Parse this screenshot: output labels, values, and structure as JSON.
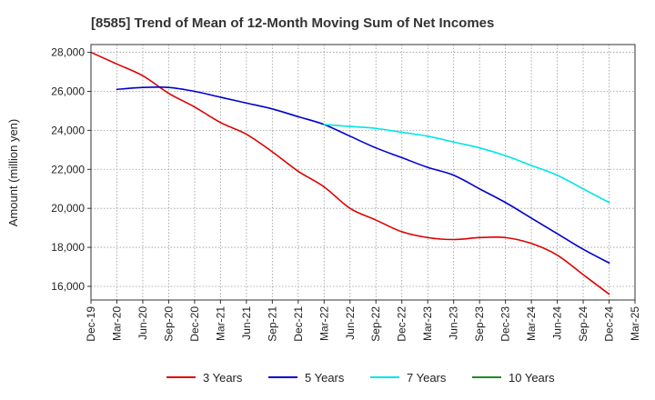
{
  "chart_data": {
    "type": "line",
    "title": "[8585]  Trend of Mean of 12-Month Moving Sum of Net Incomes",
    "xlabel": "",
    "ylabel": "Amount (million yen)",
    "ylim": [
      15300,
      28400
    ],
    "yticks": [
      16000,
      18000,
      20000,
      22000,
      24000,
      26000,
      28000
    ],
    "ytick_labels": [
      "16,000",
      "18,000",
      "20,000",
      "22,000",
      "24,000",
      "26,000",
      "28,000"
    ],
    "categories": [
      "Dec-19",
      "Mar-20",
      "Jun-20",
      "Sep-20",
      "Dec-20",
      "Mar-21",
      "Jun-21",
      "Sep-21",
      "Dec-21",
      "Mar-22",
      "Jun-22",
      "Sep-22",
      "Dec-22",
      "Mar-23",
      "Jun-23",
      "Sep-23",
      "Dec-23",
      "Mar-24",
      "Jun-24",
      "Sep-24",
      "Dec-24",
      "Mar-25"
    ],
    "grid": true,
    "legend_position": "bottom",
    "series": [
      {
        "name": "3 Years",
        "color": "#dd0000",
        "values": [
          28000,
          27400,
          26800,
          25900,
          25200,
          24400,
          23800,
          22900,
          21900,
          21100,
          20000,
          19400,
          18800,
          18500,
          18400,
          18500,
          18500,
          18200,
          17600,
          16600,
          15600,
          null
        ]
      },
      {
        "name": "5 Years",
        "color": "#0000cc",
        "values": [
          null,
          26100,
          26200,
          26200,
          26000,
          25700,
          25400,
          25100,
          24700,
          24300,
          23700,
          23100,
          22600,
          22100,
          21700,
          21000,
          20300,
          19500,
          18700,
          17900,
          17200,
          null
        ]
      },
      {
        "name": "7 Years",
        "color": "#00e5e5",
        "values": [
          null,
          null,
          null,
          null,
          null,
          null,
          null,
          null,
          null,
          24300,
          24200,
          24100,
          23900,
          23700,
          23400,
          23100,
          22700,
          22200,
          21700,
          21000,
          20300,
          null
        ]
      },
      {
        "name": "10 Years",
        "color": "#228b22",
        "values": [
          null,
          null,
          null,
          null,
          null,
          null,
          null,
          null,
          null,
          null,
          null,
          null,
          null,
          null,
          null,
          null,
          null,
          null,
          null,
          null,
          null,
          null
        ]
      }
    ]
  }
}
